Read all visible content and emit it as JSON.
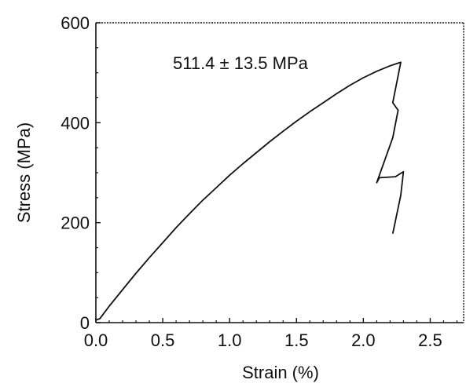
{
  "chart_data": {
    "type": "line",
    "title": "",
    "xlabel": "Strain (%)",
    "ylabel": "Stress (MPa)",
    "xlim": [
      0,
      2.75
    ],
    "ylim": [
      0,
      600
    ],
    "x_ticks": [
      "0.0",
      "0.5",
      "1.0",
      "1.5",
      "2.0",
      "2.5"
    ],
    "y_ticks": [
      "0",
      "200",
      "400",
      "600"
    ],
    "annotation": "511.4 ± 13.5 MPa",
    "grid": false,
    "line_color": "#111111",
    "series": [
      {
        "x": [
          0.0,
          0.03,
          0.1,
          0.2,
          0.3,
          0.4,
          0.5,
          0.6,
          0.7,
          0.8,
          0.9,
          1.0,
          1.1,
          1.2,
          1.3,
          1.4,
          1.5,
          1.6,
          1.7,
          1.8,
          1.9,
          2.0,
          2.1,
          2.2,
          2.28,
          2.22,
          2.26,
          2.22,
          2.1,
          2.12,
          2.24,
          2.3,
          2.28,
          2.22
        ],
        "y": [
          5,
          8,
          33,
          66,
          99,
          130,
          160,
          190,
          218,
          245,
          270,
          295,
          318,
          340,
          362,
          383,
          403,
          422,
          440,
          458,
          475,
          490,
          503,
          514,
          521,
          440,
          425,
          370,
          280,
          290,
          292,
          302,
          255,
          178
        ]
      }
    ]
  }
}
